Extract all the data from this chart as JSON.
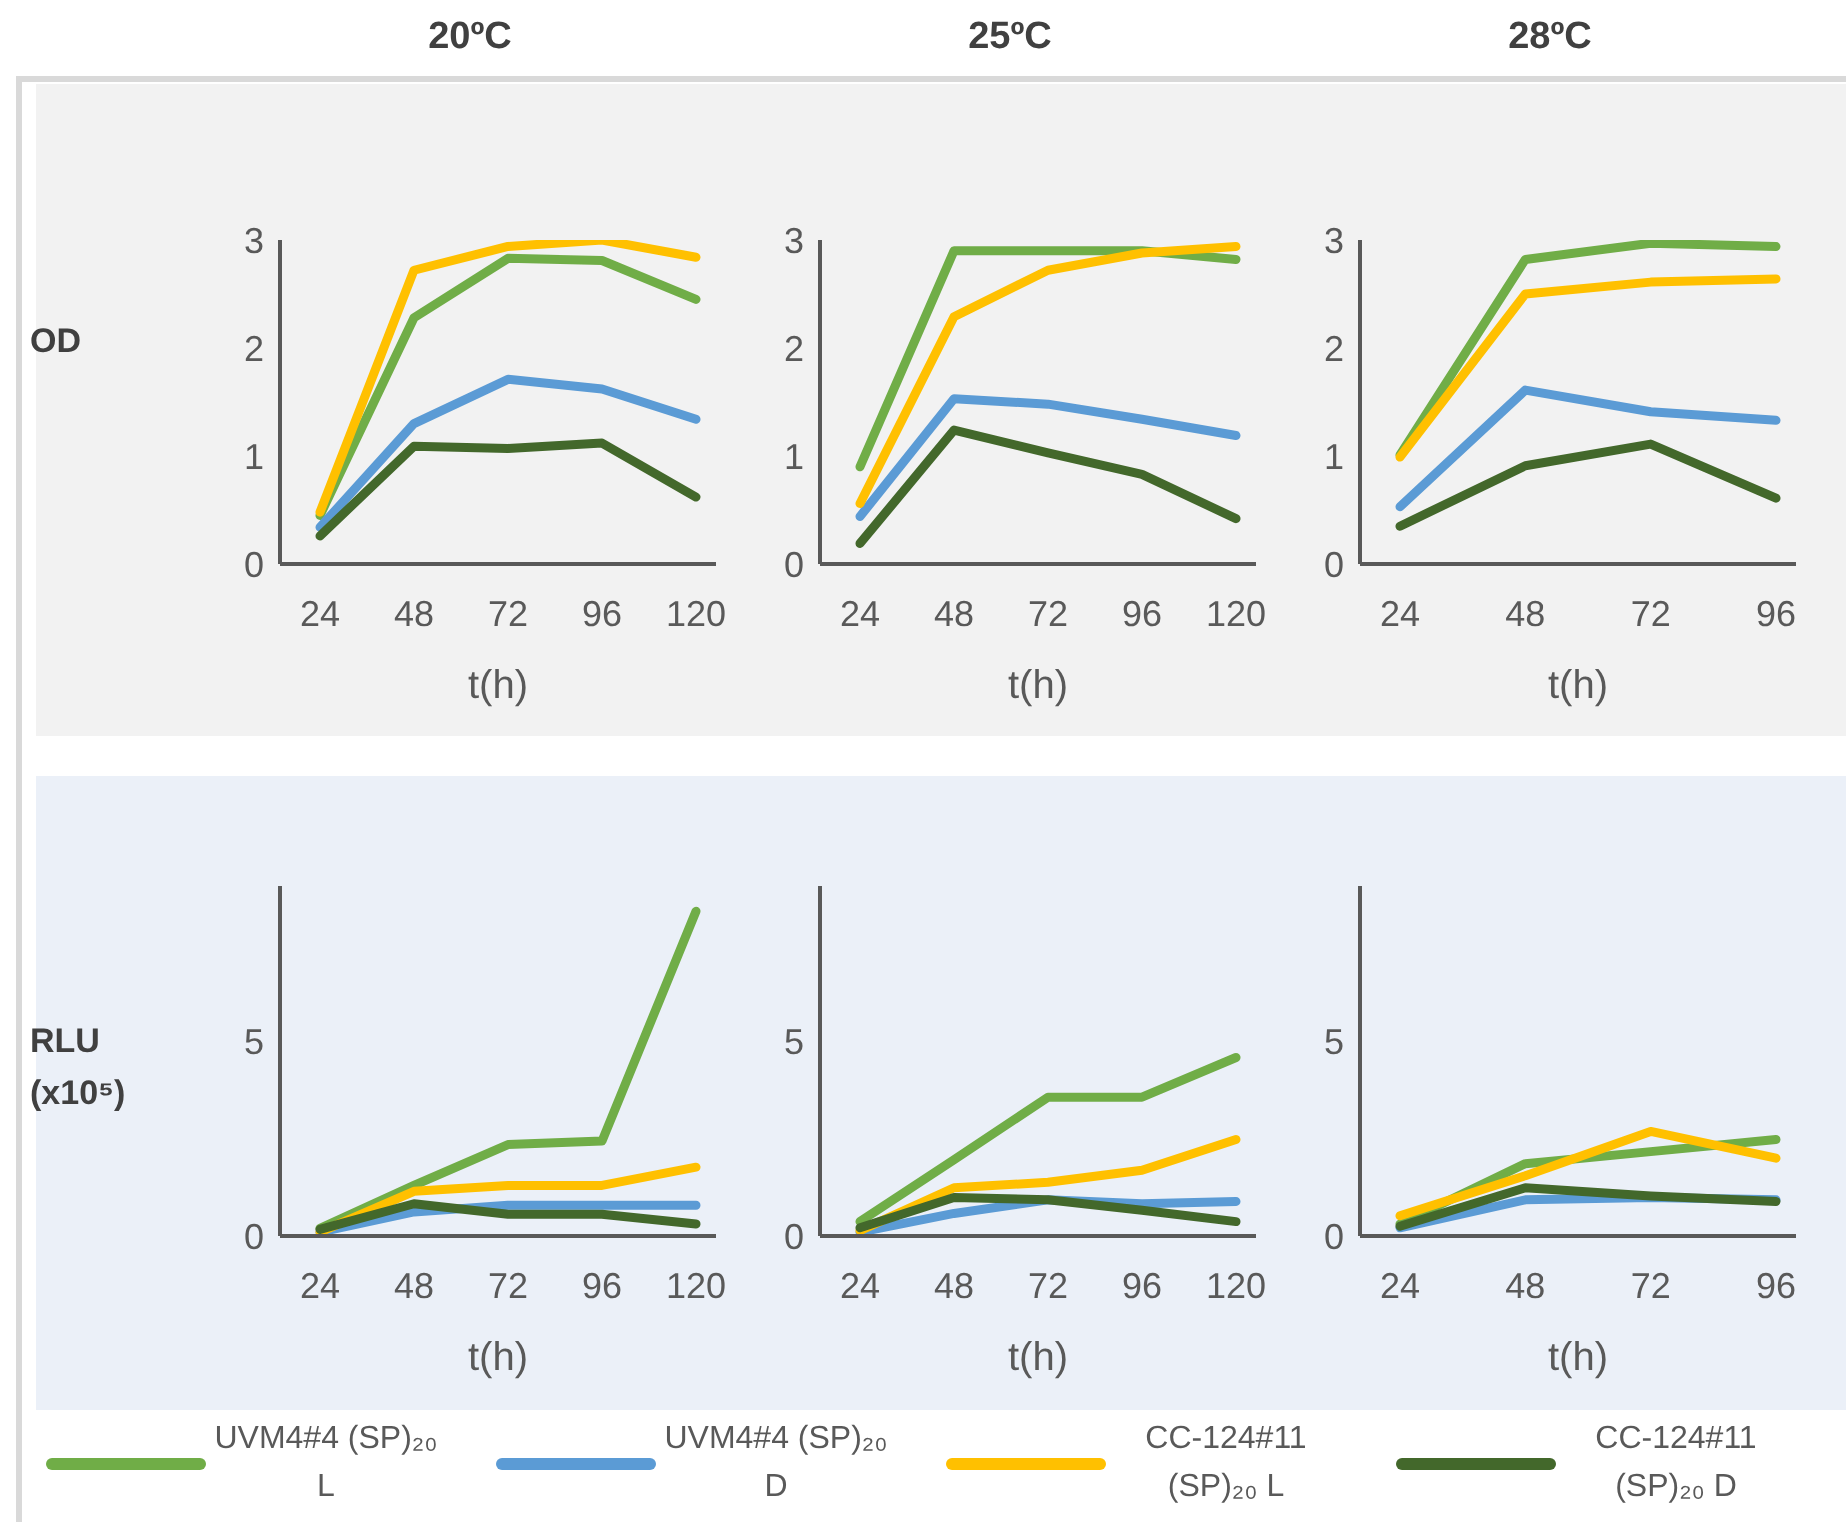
{
  "chart_data": [
    {
      "type": "line",
      "title": "20ºC",
      "ylabel": "OD",
      "xlabel": "t(h)",
      "categories": [
        "24",
        "48",
        "72",
        "96",
        "120"
      ],
      "ylim": [
        0,
        3
      ],
      "yticks": [
        0,
        1,
        2,
        3
      ],
      "series": [
        {
          "color": "#70ad47",
          "values": [
            0.45,
            2.28,
            2.83,
            2.81,
            2.45
          ]
        },
        {
          "color": "#5b9bd5",
          "values": [
            0.34,
            1.3,
            1.71,
            1.62,
            1.34
          ]
        },
        {
          "color": "#ffc000",
          "values": [
            0.48,
            2.72,
            2.94,
            3.0,
            2.84
          ]
        },
        {
          "color": "#43682b",
          "values": [
            0.26,
            1.09,
            1.07,
            1.12,
            0.62
          ]
        }
      ]
    },
    {
      "type": "line",
      "title": "25ºC",
      "xlabel": "t(h)",
      "categories": [
        "24",
        "48",
        "72",
        "96",
        "120"
      ],
      "ylim": [
        0,
        3
      ],
      "yticks": [
        0,
        1,
        2,
        3
      ],
      "series": [
        {
          "color": "#70ad47",
          "values": [
            0.9,
            2.9,
            2.9,
            2.9,
            2.82
          ]
        },
        {
          "color": "#5b9bd5",
          "values": [
            0.44,
            1.53,
            1.48,
            1.34,
            1.19
          ]
        },
        {
          "color": "#ffc000",
          "values": [
            0.56,
            2.29,
            2.72,
            2.88,
            2.94
          ]
        },
        {
          "color": "#43682b",
          "values": [
            0.19,
            1.24,
            1.03,
            0.83,
            0.42
          ]
        }
      ]
    },
    {
      "type": "line",
      "title": "28ºC",
      "xlabel": "t(h)",
      "categories": [
        "24",
        "48",
        "72",
        "96"
      ],
      "ylim": [
        0,
        3
      ],
      "yticks": [
        0,
        1,
        2,
        3
      ],
      "series": [
        {
          "color": "#70ad47",
          "values": [
            1.01,
            2.82,
            2.97,
            2.94
          ]
        },
        {
          "color": "#5b9bd5",
          "values": [
            0.53,
            1.61,
            1.41,
            1.33
          ]
        },
        {
          "color": "#ffc000",
          "values": [
            0.99,
            2.5,
            2.61,
            2.64
          ]
        },
        {
          "color": "#43682b",
          "values": [
            0.35,
            0.91,
            1.11,
            0.61
          ]
        }
      ]
    },
    {
      "type": "line",
      "ylabel": "RLU (x10⁵)",
      "xlabel": "t(h)",
      "categories": [
        "24",
        "48",
        "72",
        "96",
        "120"
      ],
      "ylim": [
        0,
        9
      ],
      "yticks": [
        0,
        5
      ],
      "series": [
        {
          "color": "#70ad47",
          "values": [
            0.2,
            1.3,
            2.35,
            2.44,
            8.35
          ]
        },
        {
          "color": "#5b9bd5",
          "values": [
            0.1,
            0.62,
            0.79,
            0.79,
            0.79
          ]
        },
        {
          "color": "#ffc000",
          "values": [
            0.1,
            1.15,
            1.3,
            1.3,
            1.77
          ]
        },
        {
          "color": "#43682b",
          "values": [
            0.17,
            0.83,
            0.56,
            0.56,
            0.31
          ]
        }
      ]
    },
    {
      "type": "line",
      "xlabel": "t(h)",
      "categories": [
        "24",
        "48",
        "72",
        "96",
        "120"
      ],
      "ylim": [
        0,
        9
      ],
      "yticks": [
        0,
        5
      ],
      "series": [
        {
          "color": "#70ad47",
          "values": [
            0.37,
            1.96,
            3.57,
            3.57,
            4.59
          ]
        },
        {
          "color": "#5b9bd5",
          "values": [
            0.1,
            0.58,
            0.93,
            0.83,
            0.89
          ]
        },
        {
          "color": "#ffc000",
          "values": [
            0.14,
            1.24,
            1.38,
            1.69,
            2.48
          ]
        },
        {
          "color": "#43682b",
          "values": [
            0.21,
            0.99,
            0.93,
            0.66,
            0.37
          ]
        }
      ]
    },
    {
      "type": "line",
      "xlabel": "t(h)",
      "categories": [
        "24",
        "48",
        "72",
        "96"
      ],
      "ylim": [
        0,
        9
      ],
      "yticks": [
        0,
        5
      ],
      "legend": "bottom",
      "series": [
        {
          "name": "UVM4#4 (SP)₂₀ L",
          "color": "#70ad47",
          "values": [
            0.31,
            1.86,
            2.17,
            2.48
          ]
        },
        {
          "name": "UVM4#4 (SP)₂₀ D",
          "color": "#5b9bd5",
          "values": [
            0.21,
            0.93,
            0.99,
            0.93
          ]
        },
        {
          "name": "CC-124#11 (SP)₂₀ L",
          "color": "#ffc000",
          "values": [
            0.52,
            1.55,
            2.69,
            2.0
          ]
        },
        {
          "name": "CC-124#11 (SP)₂₀ D",
          "color": "#43682b",
          "values": [
            0.25,
            1.24,
            1.03,
            0.89
          ]
        }
      ]
    }
  ]
}
